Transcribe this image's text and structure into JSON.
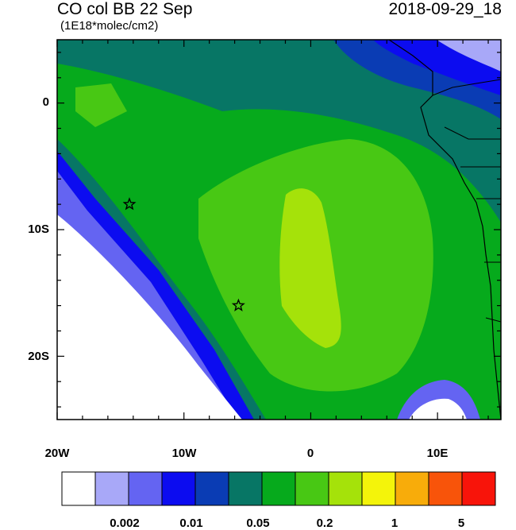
{
  "header": {
    "title": "CO col BB 22 Sep",
    "units": "(1E18*molec/cm2)",
    "datetime": "2018-09-29_18"
  },
  "map": {
    "lat_ticks": [
      "0",
      "10S",
      "20S"
    ],
    "lon_ticks": [
      "20W",
      "10W",
      "0",
      "10E"
    ],
    "extent": {
      "lon": [
        -20,
        15
      ],
      "lat": [
        -25,
        5
      ]
    },
    "markers": [
      {
        "name": "star-marker",
        "lon": -14.3,
        "lat": -8.0
      },
      {
        "name": "star-marker",
        "lon": -5.7,
        "lat": -16.0
      }
    ]
  },
  "colorbar": {
    "colors": [
      "#ffffff",
      "#a8a8f8",
      "#6464f2",
      "#0c0cf0",
      "#0a3cb4",
      "#077665",
      "#06aa1c",
      "#48c814",
      "#a5e20a",
      "#f4f40a",
      "#f8ac0a",
      "#f8540a",
      "#f8140a"
    ],
    "labels": [
      "0.002",
      "0.01",
      "0.05",
      "0.2",
      "1",
      "5"
    ]
  }
}
